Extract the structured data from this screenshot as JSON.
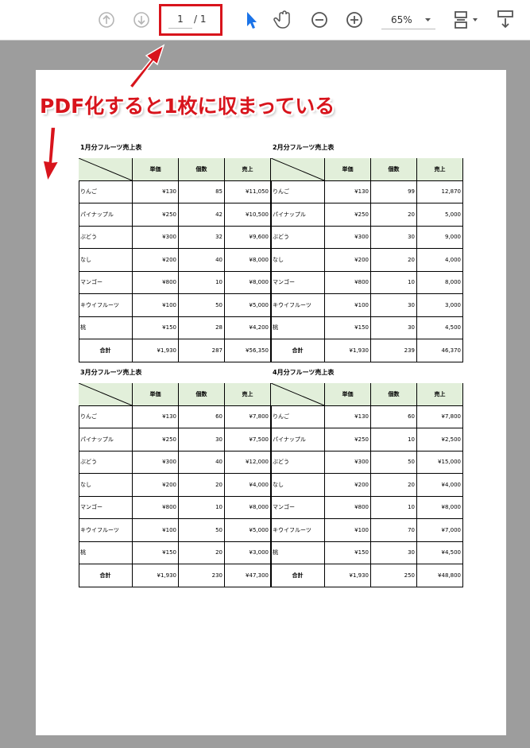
{
  "toolbar": {
    "page": "1",
    "total": "/ 1",
    "zoom": "65%"
  },
  "callout": "PDF化すると1枚に収まっている",
  "tables": [
    {
      "title": "1月分フルーツ売上表",
      "headers": [
        "単価",
        "個数",
        "売上"
      ],
      "rows": [
        [
          "りんご",
          "¥130",
          "85",
          "¥11,050"
        ],
        [
          "パイナップル",
          "¥250",
          "42",
          "¥10,500"
        ],
        [
          "ぶどう",
          "¥300",
          "32",
          "¥9,600"
        ],
        [
          "なし",
          "¥200",
          "40",
          "¥8,000"
        ],
        [
          "マンゴー",
          "¥800",
          "10",
          "¥8,000"
        ],
        [
          "キウイフルーツ",
          "¥100",
          "50",
          "¥5,000"
        ],
        [
          "桃",
          "¥150",
          "28",
          "¥4,200"
        ]
      ],
      "total": [
        "合計",
        "¥1,930",
        "287",
        "¥56,350"
      ]
    },
    {
      "title": "2月分フルーツ売上表",
      "headers": [
        "単価",
        "個数",
        "売上"
      ],
      "rows": [
        [
          "りんご",
          "¥130",
          "99",
          "12,870"
        ],
        [
          "パイナップル",
          "¥250",
          "20",
          "5,000"
        ],
        [
          "ぶどう",
          "¥300",
          "30",
          "9,000"
        ],
        [
          "なし",
          "¥200",
          "20",
          "4,000"
        ],
        [
          "マンゴー",
          "¥800",
          "10",
          "8,000"
        ],
        [
          "キウイフルーツ",
          "¥100",
          "30",
          "3,000"
        ],
        [
          "桃",
          "¥150",
          "30",
          "4,500"
        ]
      ],
      "total": [
        "合計",
        "¥1,930",
        "239",
        "46,370"
      ]
    },
    {
      "title": "3月分フルーツ売上表",
      "headers": [
        "単価",
        "個数",
        "売上"
      ],
      "rows": [
        [
          "りんご",
          "¥130",
          "60",
          "¥7,800"
        ],
        [
          "パイナップル",
          "¥250",
          "30",
          "¥7,500"
        ],
        [
          "ぶどう",
          "¥300",
          "40",
          "¥12,000"
        ],
        [
          "なし",
          "¥200",
          "20",
          "¥4,000"
        ],
        [
          "マンゴー",
          "¥800",
          "10",
          "¥8,000"
        ],
        [
          "キウイフルーツ",
          "¥100",
          "50",
          "¥5,000"
        ],
        [
          "桃",
          "¥150",
          "20",
          "¥3,000"
        ]
      ],
      "total": [
        "合計",
        "¥1,930",
        "230",
        "¥47,300"
      ]
    },
    {
      "title": "4月分フルーツ売上表",
      "headers": [
        "単価",
        "個数",
        "売上"
      ],
      "rows": [
        [
          "りんご",
          "¥130",
          "60",
          "¥7,800"
        ],
        [
          "パイナップル",
          "¥250",
          "10",
          "¥2,500"
        ],
        [
          "ぶどう",
          "¥300",
          "50",
          "¥15,000"
        ],
        [
          "なし",
          "¥200",
          "20",
          "¥4,000"
        ],
        [
          "マンゴー",
          "¥800",
          "10",
          "¥8,000"
        ],
        [
          "キウイフルーツ",
          "¥100",
          "70",
          "¥7,000"
        ],
        [
          "桃",
          "¥150",
          "30",
          "¥4,500"
        ]
      ],
      "total": [
        "合計",
        "¥1,930",
        "250",
        "¥48,800"
      ]
    }
  ]
}
